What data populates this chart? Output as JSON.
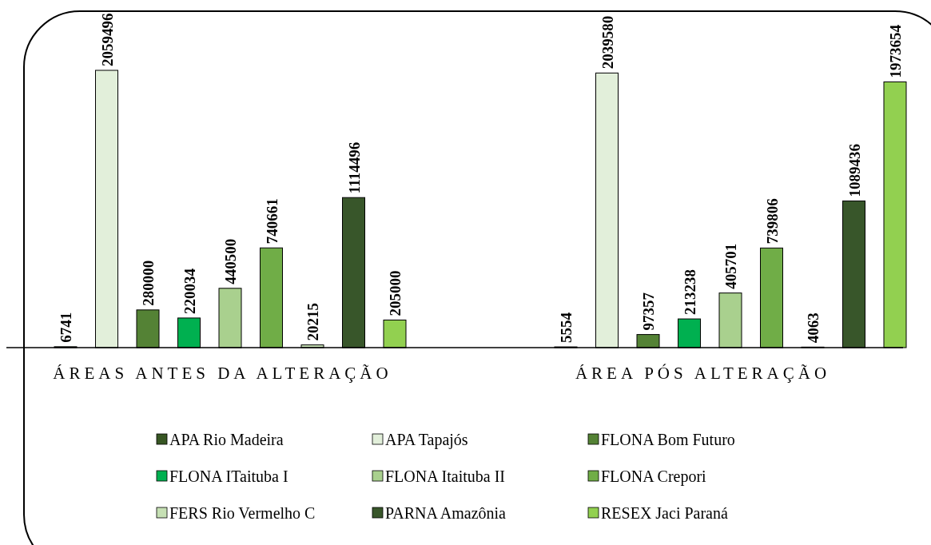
{
  "chart_data": {
    "type": "bar",
    "categories": [
      "ÁREAS ANTES DA ALTERAÇÃO",
      "ÁREA PÓS ALTERAÇÃO"
    ],
    "series": [
      {
        "name": "APA Rio Madeira",
        "color": "#375623",
        "values": [
          6741,
          5554
        ]
      },
      {
        "name": "APA Tapajós",
        "color": "#e2efda",
        "values": [
          2059496,
          2039580
        ]
      },
      {
        "name": "FLONA Bom Futuro",
        "color": "#548235",
        "values": [
          280000,
          97357
        ]
      },
      {
        "name": "FLONA ITaituba I",
        "color": "#00b050",
        "values": [
          220034,
          213238
        ]
      },
      {
        "name": "FLONA Itaituba II",
        "color": "#a9d08e",
        "values": [
          440500,
          405701
        ]
      },
      {
        "name": "FLONA Crepori",
        "color": "#70ad47",
        "values": [
          740661,
          739806
        ]
      },
      {
        "name": "FERS Rio Vermelho C",
        "color": "#c6e0b4",
        "values": [
          20215,
          4063
        ]
      },
      {
        "name": "PARNA Amazônia",
        "color": "#38562a",
        "values": [
          1114496,
          1089436
        ]
      },
      {
        "name": "RESEX Jaci Paraná",
        "color": "#92d050",
        "values": [
          205000,
          1973654
        ]
      }
    ],
    "data_labels": true,
    "legend": "bottom",
    "tick_labels": "x"
  }
}
